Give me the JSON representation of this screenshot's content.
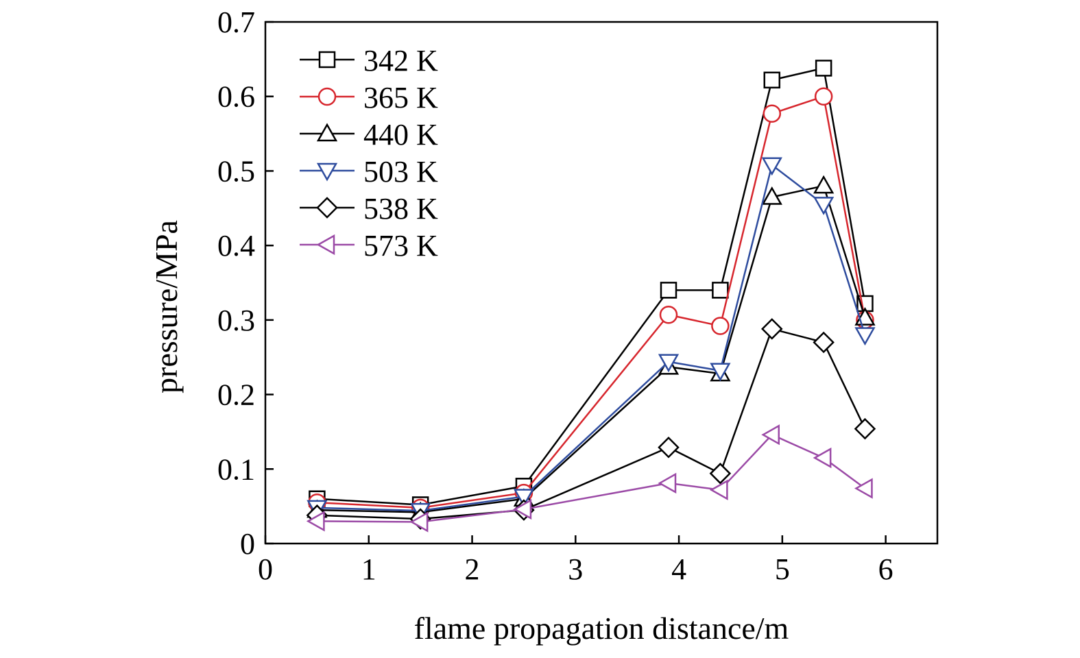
{
  "chart_data": {
    "type": "line",
    "title": "",
    "xlabel": "flame propagation distance/m",
    "ylabel": "pressure/MPa",
    "xlim": [
      0,
      6.5
    ],
    "ylim": [
      0,
      0.7
    ],
    "xticks": [
      0,
      1,
      2,
      3,
      4,
      5,
      6
    ],
    "xtick_labels": [
      "0",
      "1",
      "2",
      "3",
      "4",
      "5",
      "6"
    ],
    "yticks": [
      0,
      0.1,
      0.2,
      0.3,
      0.4,
      0.5,
      0.6,
      0.7
    ],
    "ytick_labels": [
      "0",
      "0.1",
      "0.2",
      "0.3",
      "0.4",
      "0.5",
      "0.6",
      "0.7"
    ],
    "grid": false,
    "legend_position": "top-left",
    "x": [
      0.5,
      1.5,
      2.5,
      3.9,
      4.4,
      4.9,
      5.4,
      5.8
    ],
    "series": [
      {
        "name": "342 K",
        "color": "#000000",
        "marker": "square",
        "values": [
          0.06,
          0.052,
          0.077,
          0.34,
          0.34,
          0.622,
          0.638,
          0.322
        ]
      },
      {
        "name": "365 K",
        "color": "#d7262d",
        "marker": "circle",
        "values": [
          0.055,
          0.048,
          0.068,
          0.307,
          0.292,
          0.577,
          0.6,
          0.3
        ]
      },
      {
        "name": "440 K",
        "color": "#000000",
        "marker": "triangle-up",
        "values": [
          0.045,
          0.042,
          0.06,
          0.237,
          0.228,
          0.465,
          0.48,
          0.303
        ]
      },
      {
        "name": "503 K",
        "color": "#2e4c9e",
        "marker": "triangle-down",
        "values": [
          0.048,
          0.044,
          0.063,
          0.244,
          0.232,
          0.508,
          0.455,
          0.28
        ]
      },
      {
        "name": "538 K",
        "color": "#000000",
        "marker": "diamond",
        "values": [
          0.038,
          0.033,
          0.045,
          0.129,
          0.094,
          0.288,
          0.27,
          0.154
        ]
      },
      {
        "name": "573 K",
        "color": "#9b4aa6",
        "marker": "triangle-left",
        "values": [
          0.03,
          0.029,
          0.046,
          0.081,
          0.072,
          0.146,
          0.115,
          0.074
        ]
      }
    ]
  }
}
